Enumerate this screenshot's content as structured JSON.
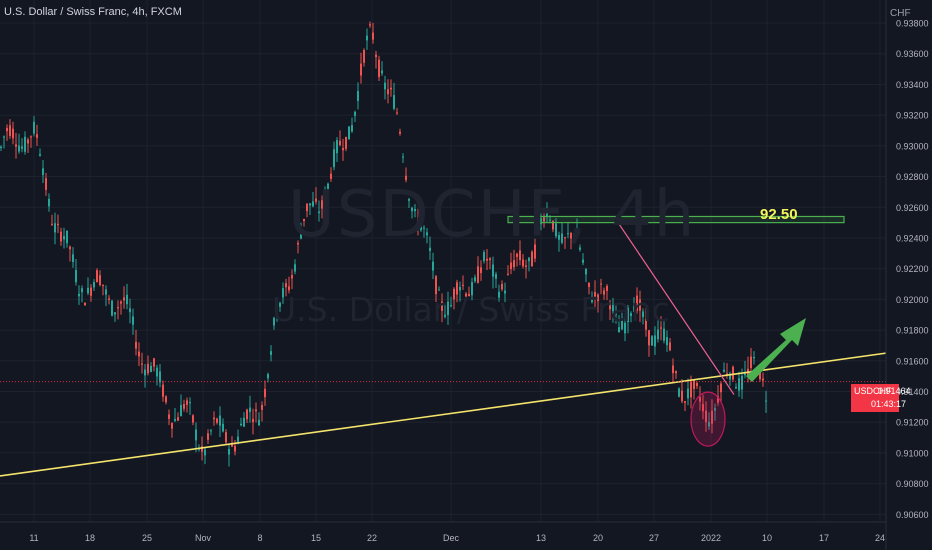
{
  "header": {
    "title": "U.S. Dollar / Swiss Franc, 4h, FXCM",
    "unit": "CHF"
  },
  "watermark": {
    "symbol": "USDCHF, 4h",
    "name": "U.S. Dollar / Swiss Franc"
  },
  "price_tag": {
    "symbol": "USDCHF",
    "price": "0.91464",
    "countdown": "01:43:17"
  },
  "annotations": {
    "level_label": "92.50"
  },
  "colors": {
    "background": "#131722",
    "up": "#26a69a",
    "down": "#ef5350",
    "support": "#f4e46b",
    "resistance_box": "#4caf50",
    "downtrend": "#f06292",
    "arrow": "#4caf50",
    "highlight": "#c2185b"
  },
  "chart_data": {
    "type": "candlestick",
    "title": "U.S. Dollar / Swiss Franc, 4h, FXCM",
    "ylim": [
      0.9055,
      0.9395
    ],
    "y_ticks": [
      "0.93800",
      "0.93600",
      "0.93400",
      "0.93200",
      "0.93000",
      "0.92800",
      "0.92600",
      "0.92400",
      "0.92200",
      "0.92000",
      "0.91800",
      "0.91600",
      "0.91400",
      "0.91200",
      "0.91000",
      "0.90800",
      "0.90600"
    ],
    "x_ticks": [
      "11",
      "18",
      "25",
      "Nov",
      "8",
      "15",
      "22",
      "Dec",
      "13",
      "20",
      "27",
      "2022",
      "10",
      "17",
      "24"
    ],
    "series": [
      {
        "points": [
          {
            "x": "11",
            "y": 0.9296
          },
          {
            "x": "18",
            "y": 0.9205
          },
          {
            "x": "25",
            "y": 0.917
          },
          {
            "x": "Nov",
            "y": 0.9095
          },
          {
            "x": "8",
            "y": 0.914
          },
          {
            "x": "15",
            "y": 0.9265
          },
          {
            "x": "22",
            "y": 0.9362
          },
          {
            "x": "Dec",
            "y": 0.919
          },
          {
            "x": "13",
            "y": 0.9245
          },
          {
            "x": "20",
            "y": 0.9215
          },
          {
            "x": "27",
            "y": 0.9168
          },
          {
            "x": "2022",
            "y": 0.9136
          },
          {
            "x": "10",
            "y": 0.9146
          }
        ]
      }
    ],
    "support_line": {
      "from": [
        "11",
        0.9085
      ],
      "to": [
        "24",
        0.9165
      ]
    },
    "resistance_zone": {
      "y": [
        0.925,
        0.9254
      ],
      "from": "Dec",
      "to": "17",
      "label": "92.50"
    },
    "current_price": 0.91464
  }
}
